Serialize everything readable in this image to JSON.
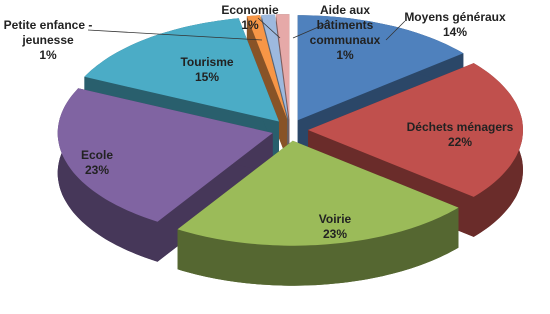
{
  "chart_data": {
    "type": "pie3d",
    "categories": [
      "Moyens généraux",
      "Déchets ménagers",
      "Voirie",
      "Ecole",
      "Tourisme",
      "Petite enfance - jeunesse",
      "Economie",
      "Aide aux bâtiments communaux"
    ],
    "values": [
      14,
      22,
      23,
      23,
      15,
      1,
      1,
      1
    ],
    "value_labels": [
      "14%",
      "22%",
      "23%",
      "23%",
      "15%",
      "1%",
      "1%",
      "1%"
    ],
    "colors": [
      "#4f81bd",
      "#c0504d",
      "#9bbb59",
      "#8064a2",
      "#4bacc6",
      "#f79646",
      "#9db9de",
      "#e6a9a8"
    ]
  }
}
